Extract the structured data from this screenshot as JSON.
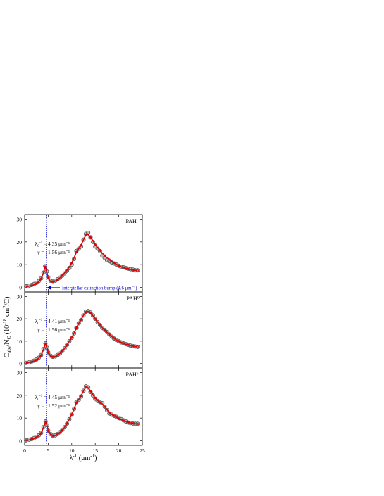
{
  "figure": {
    "ylabel": "C_abs/N_C (10^-18 cm^2/C)",
    "xlabel": "λ^-1 (μm^-1)",
    "x_ticks": [
      0,
      5,
      10,
      15,
      20,
      25
    ],
    "y_ticks": [
      0,
      10,
      20,
      30
    ]
  },
  "colors": {
    "data_marker": "#555555",
    "fit_line": "#dd0000",
    "guide_line": "#0000cc",
    "annotation": "#0000cc"
  },
  "chart_data": [
    {
      "type": "scatter",
      "title": "",
      "panel_label": "PAH⁻",
      "xlim": [
        0,
        25
      ],
      "ylim": [
        -2,
        32
      ],
      "params": {
        "lambda_text": "4.35 μm⁻¹",
        "gamma_text": "1.56 μm⁻¹"
      },
      "annotation": "Interstellar extinction bump (4.6 μm⁻¹)",
      "guide_x": 4.6,
      "series": [
        {
          "name": "",
          "x": [
            0.3,
            1,
            1.5,
            2,
            2.5,
            3,
            3.5,
            4,
            4.35,
            4.7,
            5,
            5.5,
            6,
            6.5,
            7,
            7.5,
            8,
            8.5,
            9,
            9.5,
            10,
            10.5,
            11,
            11.5,
            12,
            12.5,
            13,
            13.5,
            14,
            14.5,
            15,
            15.5,
            16,
            16.5,
            17,
            17.5,
            18,
            18.5,
            19,
            19.5,
            20,
            20.5,
            21,
            21.5,
            22,
            22.5,
            23,
            23.5,
            24
          ],
          "y": [
            0.5,
            0.8,
            1.1,
            1.5,
            2.0,
            2.8,
            4.0,
            6.5,
            9.3,
            7.0,
            4.5,
            3.0,
            2.8,
            3.0,
            3.6,
            4.3,
            5.2,
            6.2,
            7.3,
            8.5,
            10.0,
            12.5,
            16.0,
            17.0,
            18.0,
            21.0,
            23.5,
            24.0,
            22.0,
            20.0,
            18.0,
            17.0,
            16.0,
            14.0,
            13.0,
            12.0,
            11.5,
            11.0,
            10.5,
            10.0,
            9.5,
            9.0,
            8.8,
            8.5,
            8.2,
            8.0,
            7.8,
            7.5,
            7.5
          ]
        },
        {
          "name": "",
          "x": [
            0.3,
            1,
            1.5,
            2,
            2.5,
            3,
            3.5,
            4,
            4.35,
            4.7,
            5,
            5.5,
            6,
            6.5,
            7,
            7.5,
            8,
            8.5,
            9,
            9.5,
            10,
            10.5,
            11,
            11.5,
            12,
            12.5,
            13,
            13.5,
            14,
            14.5,
            15,
            15.5,
            16,
            16.5,
            17,
            17.5,
            18,
            18.5,
            19,
            19.5,
            20,
            20.5,
            21,
            21.5,
            22,
            22.5,
            23,
            23.5,
            24
          ],
          "y": [
            0.4,
            0.6,
            0.8,
            1.2,
            1.7,
            2.5,
            3.8,
            6.5,
            9.0,
            6.8,
            4.0,
            2.6,
            2.5,
            2.8,
            3.4,
            4.2,
            5.2,
            6.4,
            7.6,
            9.0,
            10.8,
            13.0,
            15.5,
            17.0,
            18.5,
            21.0,
            23.0,
            23.2,
            22.0,
            20.5,
            18.8,
            17.5,
            16.2,
            15.0,
            14.0,
            13.0,
            12.2,
            11.5,
            10.8,
            10.2,
            9.6,
            9.1,
            8.7,
            8.4,
            8.1,
            7.9,
            7.7,
            7.5,
            7.4
          ]
        }
      ]
    },
    {
      "type": "scatter",
      "title": "",
      "panel_label": "PAH⁰",
      "xlim": [
        0,
        25
      ],
      "ylim": [
        -2,
        32
      ],
      "params": {
        "lambda_text": "4.41 μm⁻¹",
        "gamma_text": "1.56 μm⁻¹"
      },
      "guide_x": 4.6,
      "series": [
        {
          "name": "",
          "x": [
            0.3,
            1,
            1.5,
            2,
            2.5,
            3,
            3.5,
            4,
            4.41,
            4.8,
            5,
            5.5,
            6,
            6.5,
            7,
            7.5,
            8,
            8.5,
            9,
            9.5,
            10,
            10.5,
            11,
            11.5,
            12,
            12.5,
            13,
            13.5,
            14,
            14.5,
            15,
            15.5,
            16,
            16.5,
            17,
            17.5,
            18,
            18.5,
            19,
            19.5,
            20,
            20.5,
            21,
            21.5,
            22,
            22.5,
            23,
            23.5,
            24
          ],
          "y": [
            0.3,
            0.6,
            0.9,
            1.3,
            1.8,
            2.6,
            3.8,
            6.5,
            9.0,
            7.0,
            5.0,
            3.5,
            3.0,
            3.2,
            3.8,
            4.5,
            5.5,
            6.8,
            8.3,
            10.0,
            11.5,
            13.5,
            16.0,
            18.0,
            19.5,
            21.5,
            23.2,
            23.5,
            22.8,
            21.5,
            20.0,
            18.5,
            17.2,
            16.0,
            15.0,
            14.0,
            13.0,
            12.0,
            11.2,
            10.5,
            10.0,
            9.5,
            9.0,
            8.7,
            8.3,
            8.0,
            7.8,
            7.6,
            7.5
          ]
        },
        {
          "name": "",
          "x": [
            0.3,
            1,
            1.5,
            2,
            2.5,
            3,
            3.5,
            4,
            4.41,
            4.8,
            5,
            5.5,
            6,
            6.5,
            7,
            7.5,
            8,
            8.5,
            9,
            9.5,
            10,
            10.5,
            11,
            11.5,
            12,
            12.5,
            13,
            13.5,
            14,
            14.5,
            15,
            15.5,
            16,
            16.5,
            17,
            17.5,
            18,
            18.5,
            19,
            19.5,
            20,
            20.5,
            21,
            21.5,
            22,
            22.5,
            23,
            23.5,
            24
          ],
          "y": [
            0.3,
            0.5,
            0.8,
            1.1,
            1.6,
            2.4,
            3.6,
            6.2,
            8.8,
            6.8,
            4.8,
            3.3,
            2.9,
            3.1,
            3.7,
            4.5,
            5.5,
            6.8,
            8.3,
            10.0,
            11.6,
            13.6,
            16.0,
            18.0,
            19.6,
            21.6,
            23.0,
            23.3,
            22.6,
            21.4,
            20.0,
            18.6,
            17.3,
            16.1,
            15.0,
            14.0,
            13.0,
            12.1,
            11.3,
            10.6,
            10.0,
            9.5,
            9.0,
            8.6,
            8.3,
            8.0,
            7.8,
            7.6,
            7.5
          ]
        }
      ]
    },
    {
      "type": "scatter",
      "title": "",
      "panel_label": "PAH⁺",
      "xlim": [
        0,
        25
      ],
      "ylim": [
        -2,
        32
      ],
      "params": {
        "lambda_text": "4.45 μm⁻¹",
        "gamma_text": "1.52 μm⁻¹"
      },
      "guide_x": 4.6,
      "series": [
        {
          "name": "",
          "x": [
            0.3,
            1,
            1.5,
            2,
            2.5,
            3,
            3.5,
            4,
            4.45,
            4.8,
            5,
            5.5,
            6,
            6.5,
            7,
            7.5,
            8,
            8.5,
            9,
            9.5,
            10,
            10.5,
            11,
            11.5,
            12,
            12.5,
            13,
            13.5,
            14,
            14.5,
            15,
            15.5,
            16,
            16.5,
            17,
            17.5,
            18,
            18.5,
            19,
            19.5,
            20,
            20.5,
            21,
            21.5,
            22,
            22.5,
            23,
            23.5,
            24
          ],
          "y": [
            0.2,
            0.5,
            0.8,
            1.2,
            1.7,
            2.4,
            3.5,
            6.0,
            8.5,
            6.8,
            4.5,
            3.0,
            2.2,
            2.4,
            3.0,
            3.8,
            4.8,
            6.0,
            7.5,
            9.5,
            11.5,
            14.0,
            17.0,
            18.0,
            19.5,
            22.0,
            24.0,
            23.5,
            21.5,
            20.0,
            18.5,
            17.5,
            17.0,
            16.5,
            15.0,
            13.5,
            12.0,
            11.5,
            11.0,
            10.5,
            10.0,
            9.5,
            9.0,
            8.5,
            8.0,
            7.8,
            7.6,
            7.5,
            7.5
          ]
        },
        {
          "name": "",
          "x": [
            0.3,
            1,
            1.5,
            2,
            2.5,
            3,
            3.5,
            4,
            4.45,
            4.8,
            5,
            5.5,
            6,
            6.5,
            7,
            7.5,
            8,
            8.5,
            9,
            9.5,
            10,
            10.5,
            11,
            11.5,
            12,
            12.5,
            13,
            13.5,
            14,
            14.5,
            15,
            15.5,
            16,
            16.5,
            17,
            17.5,
            18,
            18.5,
            19,
            19.5,
            20,
            20.5,
            21,
            21.5,
            22,
            22.5,
            23,
            23.5,
            24
          ],
          "y": [
            0.2,
            0.4,
            0.7,
            1.0,
            1.5,
            2.2,
            3.3,
            5.8,
            8.3,
            6.6,
            4.3,
            2.8,
            2.1,
            2.3,
            2.9,
            3.7,
            4.7,
            6.0,
            7.6,
            9.5,
            11.5,
            14.0,
            16.8,
            18.2,
            19.8,
            22.0,
            23.5,
            23.3,
            21.8,
            20.3,
            18.8,
            17.7,
            16.9,
            16.2,
            15.0,
            13.7,
            12.4,
            11.6,
            11.0,
            10.4,
            9.8,
            9.3,
            8.9,
            8.5,
            8.1,
            7.9,
            7.7,
            7.5,
            7.4
          ]
        }
      ]
    }
  ]
}
